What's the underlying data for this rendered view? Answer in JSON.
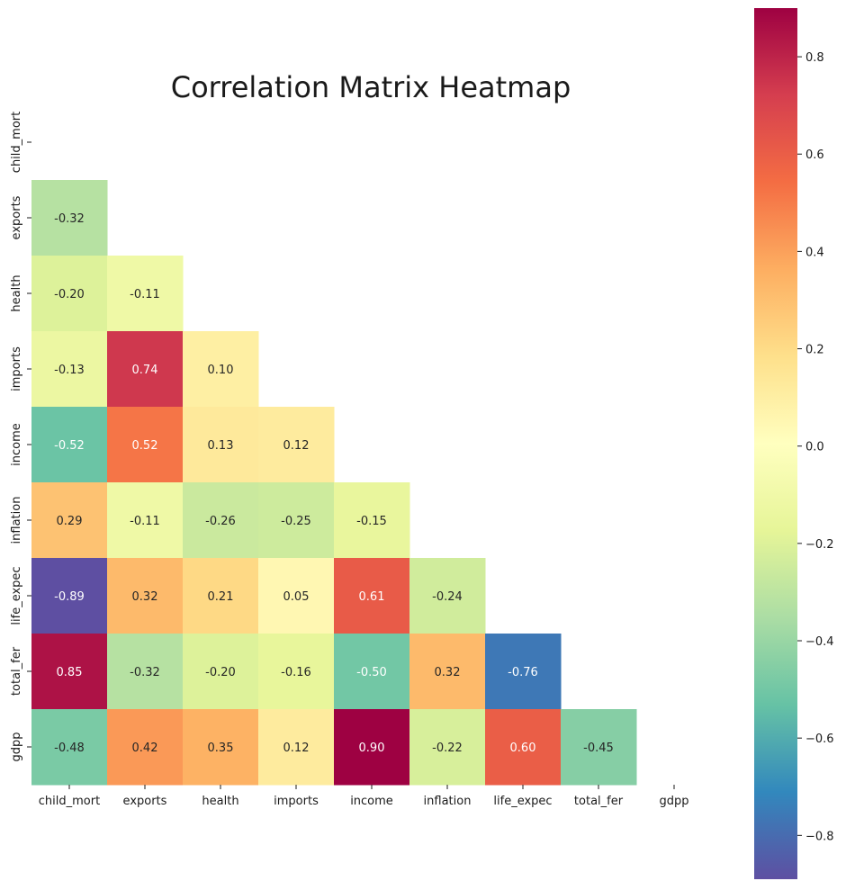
{
  "chart_data": {
    "type": "heatmap",
    "title": "Correlation Matrix Heatmap",
    "variables": [
      "child_mort",
      "exports",
      "health",
      "imports",
      "income",
      "inflation",
      "life_expec",
      "total_fer",
      "gdpp"
    ],
    "mask": "upper-triangle-including-diagonal",
    "values": [
      [
        null,
        null,
        null,
        null,
        null,
        null,
        null,
        null,
        null
      ],
      [
        -0.32,
        null,
        null,
        null,
        null,
        null,
        null,
        null,
        null
      ],
      [
        -0.2,
        -0.11,
        null,
        null,
        null,
        null,
        null,
        null,
        null
      ],
      [
        -0.13,
        0.74,
        0.1,
        null,
        null,
        null,
        null,
        null,
        null
      ],
      [
        -0.52,
        0.52,
        0.13,
        0.12,
        null,
        null,
        null,
        null,
        null
      ],
      [
        0.29,
        -0.11,
        -0.26,
        -0.25,
        -0.15,
        null,
        null,
        null,
        null
      ],
      [
        -0.89,
        0.32,
        0.21,
        0.05,
        0.61,
        -0.24,
        null,
        null,
        null
      ],
      [
        0.85,
        -0.32,
        -0.2,
        -0.16,
        -0.5,
        0.32,
        -0.76,
        null,
        null
      ],
      [
        -0.48,
        0.42,
        0.35,
        0.12,
        0.9,
        -0.22,
        0.6,
        -0.45,
        null
      ]
    ],
    "colormap": "Spectral",
    "colorbar": {
      "vmin": -0.89,
      "vmax": 0.9,
      "ticks": [
        0.8,
        0.6,
        0.4,
        0.2,
        0.0,
        -0.2,
        -0.4,
        -0.6,
        -0.8
      ],
      "tick_labels": [
        "0.8",
        "0.6",
        "0.4",
        "0.2",
        "0.0",
        "−0.2",
        "−0.4",
        "−0.6",
        "−0.8"
      ]
    }
  }
}
